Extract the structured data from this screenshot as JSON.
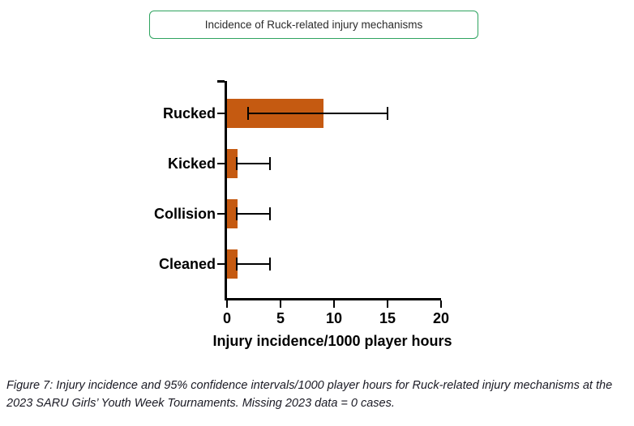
{
  "caption": "Figure 7: Injury incidence and 95% confidence intervals/1000 player hours for Ruck-related injury mechanisms at the 2023 SARU Girls’ Youth Week Tournaments. Missing 2023 data = 0 cases.",
  "colors": {
    "bar": "#C55A11",
    "title_border": "#2EA35F",
    "axis": "#000000",
    "caption_text": "#1a1a24"
  },
  "chart_data": {
    "type": "bar",
    "orientation": "horizontal",
    "title": "Incidence of Ruck-related injury mechanisms",
    "categories": [
      "Rucked",
      "Kicked",
      "Collision",
      "Cleaned"
    ],
    "series": [
      {
        "name": "Injury incidence",
        "values": [
          9,
          1,
          1,
          1
        ],
        "ci_low": [
          2,
          0.9,
          0.9,
          0.9
        ],
        "ci_high": [
          15,
          4,
          4,
          4
        ]
      }
    ],
    "error_bars": "95% confidence intervals",
    "xlabel": "Injury incidence/1000 player hours",
    "xlim": [
      0,
      20
    ],
    "xticks": [
      0,
      5,
      10,
      15,
      20
    ],
    "bar_color": "#C55A11",
    "grid": false,
    "legend": false
  }
}
